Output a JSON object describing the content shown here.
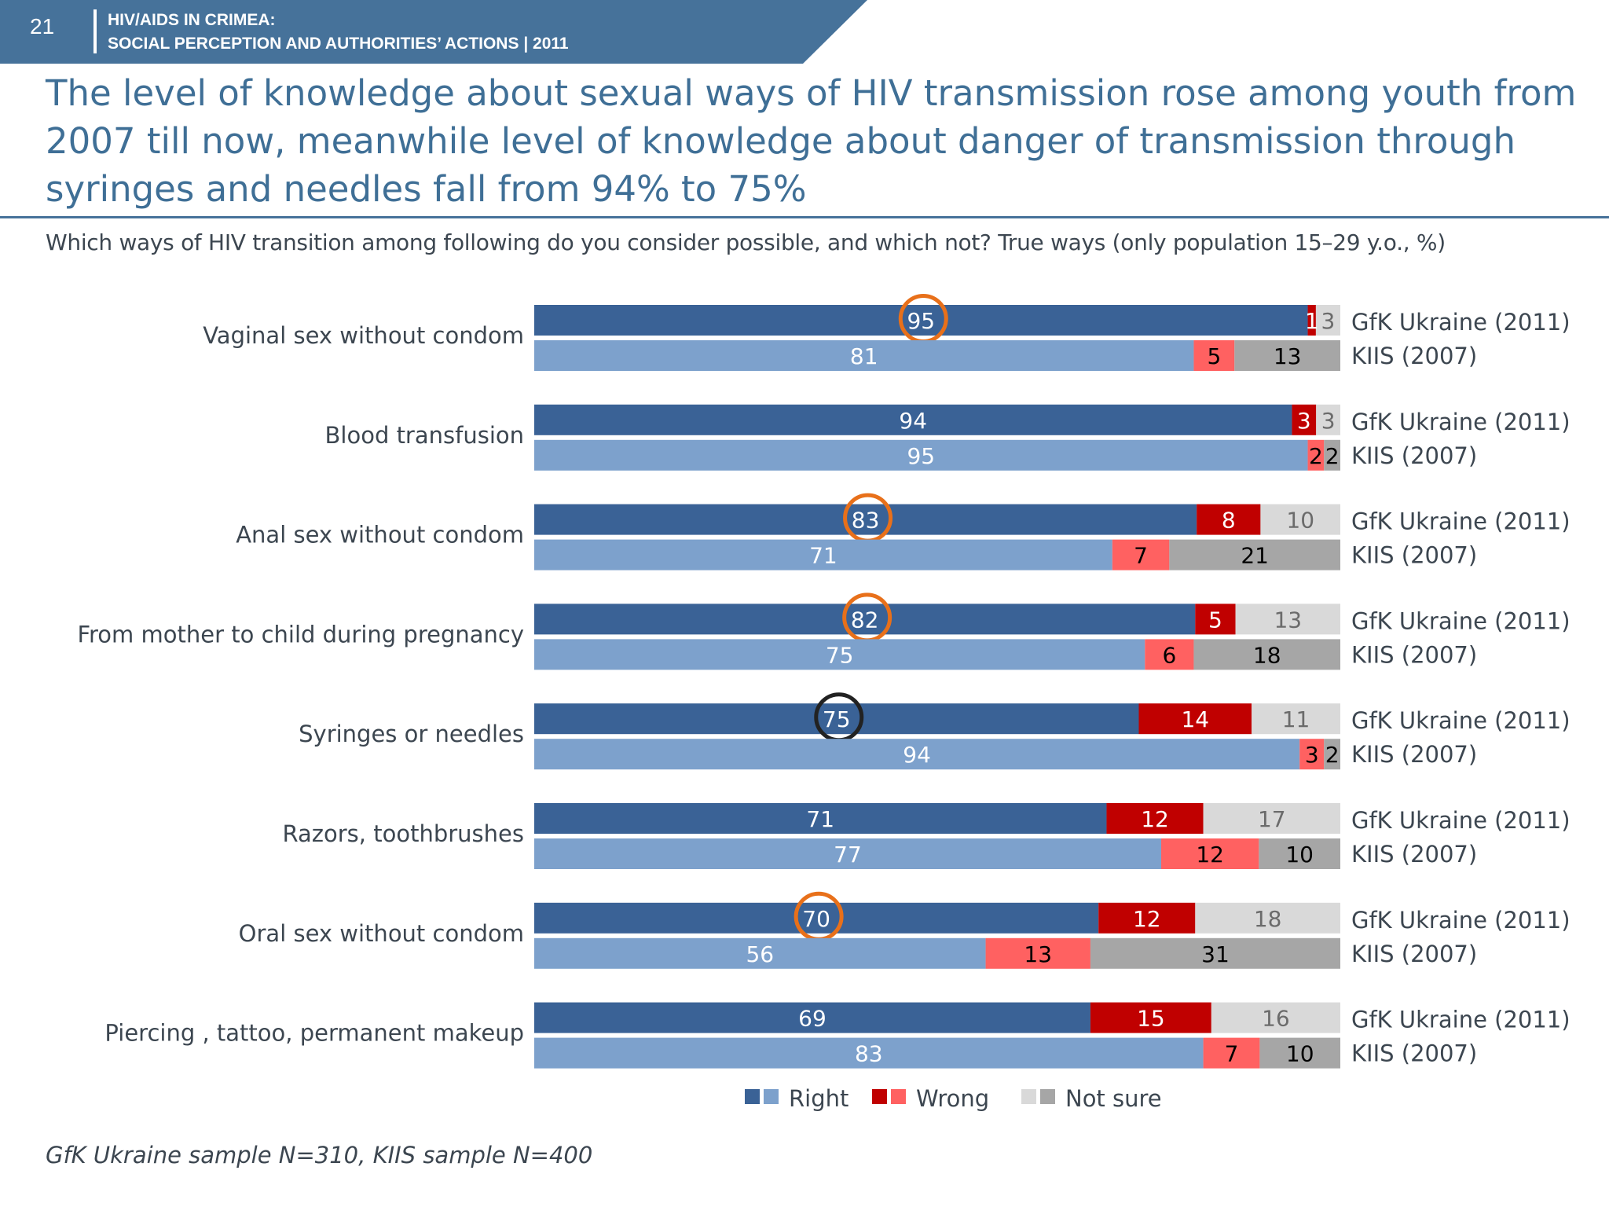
{
  "header": {
    "page_number": "21",
    "line1": "HIV/AIDS IN CRIMEA:",
    "line2": "SOCIAL PERCEPTION AND AUTHORITIES’ ACTIONS  |  2011"
  },
  "title": "The level of knowledge about sexual ways of HIV transmission rose among youth from 2007 till now, meanwhile level of knowledge about danger of transmission through syringes and needles fall from 94% to 75%",
  "subtitle": "Which ways of HIV transition among following do you consider possible, and which not? True ways (only population 15–29 y.o., %)",
  "footnote": "GfK Ukraine sample N=310, KIIS sample N=400",
  "chart_data": {
    "type": "bar",
    "orientation": "horizontal",
    "stacked": true,
    "sources": [
      "GfK Ukraine (2011)",
      "KIIS (2007)"
    ],
    "legend": [
      "Right",
      "Wrong",
      "Not sure"
    ],
    "legend_placement": "bottom",
    "colors": {
      "right_2011": "#3a6296",
      "right_2007": "#7da1cc",
      "wrong_2011": "#c00000",
      "wrong_2007": "#ff6161",
      "notsure_2011": "#d9d9d9",
      "notsure_2007": "#a6a6a6",
      "highlight": "#e8701a",
      "highlight_negative": "#222222"
    },
    "categories": [
      {
        "label": "Vaginal sex without condom",
        "gfk_2011": [
          95,
          1,
          3
        ],
        "kiis_2007": [
          81,
          5,
          13
        ],
        "highlight": "up"
      },
      {
        "label": "Blood transfusion",
        "gfk_2011": [
          94,
          3,
          3
        ],
        "kiis_2007": [
          95,
          2,
          2
        ],
        "highlight": null
      },
      {
        "label": "Anal sex without condom",
        "gfk_2011": [
          83,
          8,
          10
        ],
        "kiis_2007": [
          71,
          7,
          21
        ],
        "highlight": "up"
      },
      {
        "label": "From mother to child during pregnancy",
        "gfk_2011": [
          82,
          5,
          13
        ],
        "kiis_2007": [
          75,
          6,
          18
        ],
        "highlight": "up"
      },
      {
        "label": "Syringes or needles",
        "gfk_2011": [
          75,
          14,
          11
        ],
        "kiis_2007": [
          94,
          3,
          2
        ],
        "highlight": "down"
      },
      {
        "label": "Razors, toothbrushes",
        "gfk_2011": [
          71,
          12,
          17
        ],
        "kiis_2007": [
          77,
          12,
          10
        ],
        "highlight": null
      },
      {
        "label": "Oral sex without condom",
        "gfk_2011": [
          70,
          12,
          18
        ],
        "kiis_2007": [
          56,
          13,
          31
        ],
        "highlight": "up"
      },
      {
        "label": "Piercing , tattoo, permanent makeup",
        "gfk_2011": [
          69,
          15,
          16
        ],
        "kiis_2007": [
          83,
          7,
          10
        ],
        "highlight": null
      }
    ]
  }
}
